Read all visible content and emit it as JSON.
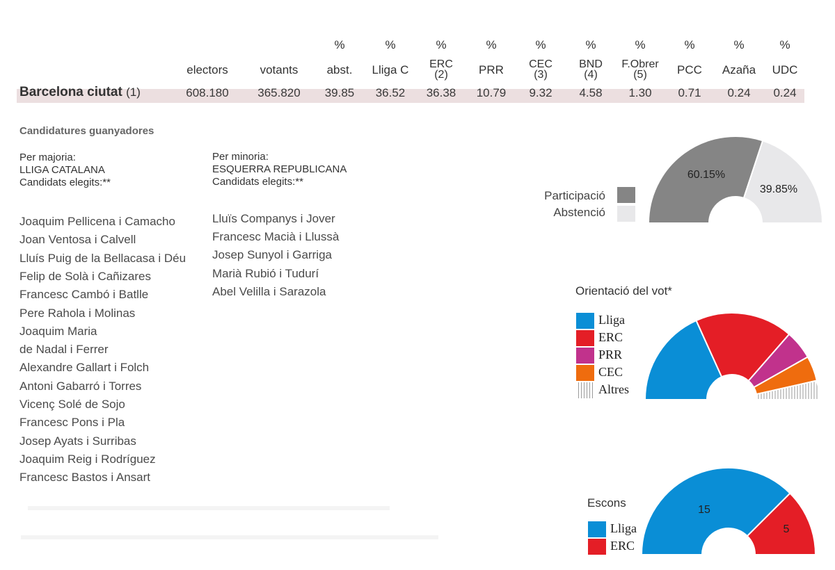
{
  "table": {
    "columns": [
      {
        "pct": "",
        "head": "electors"
      },
      {
        "pct": "",
        "head": "votants"
      },
      {
        "pct": "%",
        "head": "abst."
      },
      {
        "pct": "%",
        "head": "Lliga C"
      },
      {
        "pct": "%",
        "head": "ERC",
        "sub": "(2)"
      },
      {
        "pct": "%",
        "head": "PRR"
      },
      {
        "pct": "%",
        "head": "CEC",
        "sub": "(3)"
      },
      {
        "pct": "%",
        "head": "BND",
        "sub": "(4)"
      },
      {
        "pct": "%",
        "head": "F.Obrer",
        "sub": "(5)"
      },
      {
        "pct": "%",
        "head": "PCC"
      },
      {
        "pct": "%",
        "head": "Azaña"
      },
      {
        "pct": "%",
        "head": "UDC"
      }
    ],
    "row": {
      "region": "Barcelona ciutat",
      "region_note": "(1)",
      "values": [
        "608.180",
        "365.820",
        "39.85",
        "36.52",
        "36.38",
        "10.79",
        "9.32",
        "4.58",
        "1.30",
        "0.71",
        "0.24",
        "0.24"
      ]
    }
  },
  "candidatures": {
    "section_title": "Candidatures guanyadores",
    "majority": {
      "label": "Per majoria:",
      "party": "LLIGA CATALANA",
      "elected_label": "Candidats elegits:**",
      "names": [
        "Joaquim Pellicena i Camacho",
        "Joan Ventosa i Calvell",
        "Lluís Puig de la Bellacasa i Déu",
        "Felip de Solà i Cañizares",
        "Francesc Cambó i Batlle",
        "Pere Rahola i Molinas",
        "Joaquim Maria",
        "de Nadal i Ferrer",
        "Alexandre Gallart i Folch",
        "Antoni Gabarró i Torres",
        "Vicenç Solé de Sojo",
        "Francesc Pons i Pla",
        "Josep Ayats i Surribas",
        "Joaquim Reig i Rodríguez",
        "Francesc Bastos i Ansart"
      ]
    },
    "minority": {
      "label": "Per minoria:",
      "party": "ESQUERRA REPUBLICANA",
      "elected_label": "Candidats elegits:**",
      "names": [
        "Lluïs Companys i Jover",
        "Francesc Macià i Llussà",
        "Josep Sunyol i Garriga",
        "Marià Rubió i Tudurí",
        "Abel Velilla i Sarazola"
      ]
    }
  },
  "chart_data": [
    {
      "type": "pie",
      "variant": "half-donut",
      "legend": [
        "Participació",
        "Abstenció"
      ],
      "values": [
        60.15,
        39.85
      ],
      "labels": [
        "60.15%",
        "39.85%"
      ],
      "colors": [
        "#858585",
        "#e8e8ea"
      ]
    },
    {
      "type": "pie",
      "variant": "half-donut",
      "title": "Orientació del vot*",
      "legend": [
        "Lliga",
        "ERC",
        "PRR",
        "CEC",
        "Altres"
      ],
      "values": [
        36.52,
        36.38,
        10.79,
        9.32,
        7.07
      ],
      "colors": [
        "#0a8ed6",
        "#e41e26",
        "#c1328c",
        "#ef6c0e",
        "#ffffff"
      ]
    },
    {
      "type": "pie",
      "variant": "half-donut",
      "title": "Escons",
      "legend": [
        "Lliga",
        "ERC"
      ],
      "values": [
        15,
        5
      ],
      "labels": [
        "15",
        "5"
      ],
      "colors": [
        "#0a8ed6",
        "#e41e26"
      ]
    }
  ]
}
